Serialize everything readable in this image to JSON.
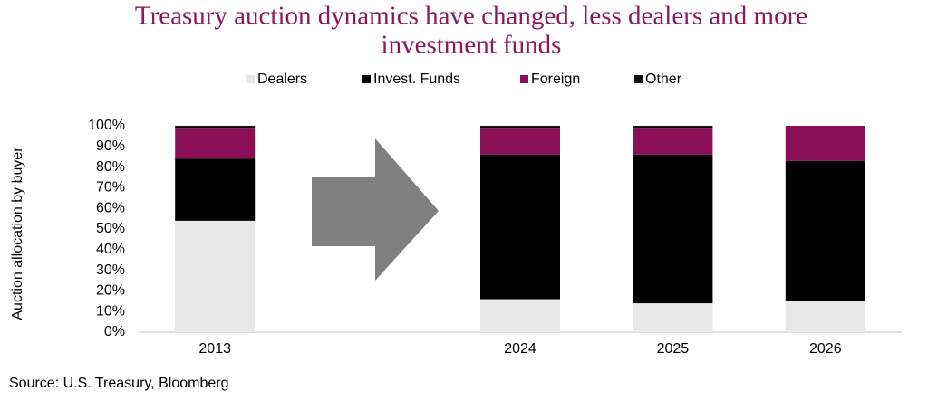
{
  "chart_data": {
    "type": "stacked_bar",
    "title": [
      "Treasury auction dynamics have changed, less dealers and more",
      "investment funds"
    ],
    "y_label": "Auction allocation by buyer",
    "source": "Source: U.S. Treasury, Bloomberg",
    "categories": [
      "2013",
      null,
      "2024",
      "2025",
      "2026"
    ],
    "series": [
      {
        "name": "Dealers",
        "color": "#e8e8e8",
        "values": [
          54,
          null,
          16,
          14,
          15
        ]
      },
      {
        "name": "Invest. Funds",
        "color": "#000000",
        "values": [
          30,
          null,
          70,
          72,
          68
        ]
      },
      {
        "name": "Foreign",
        "color": "#8b0f57",
        "values": [
          15,
          null,
          13,
          13,
          17
        ]
      },
      {
        "name": "Other",
        "color": "#111111",
        "values": [
          1,
          null,
          1,
          1,
          0
        ]
      }
    ],
    "ylim": [
      0,
      100
    ],
    "yticks": [
      {
        "value": 0,
        "label": "0%"
      },
      {
        "value": 10,
        "label": "10%"
      },
      {
        "value": 20,
        "label": "20%"
      },
      {
        "value": 30,
        "label": "30%"
      },
      {
        "value": 40,
        "label": "40%"
      },
      {
        "value": 50,
        "label": "50%"
      },
      {
        "value": 60,
        "label": "60%"
      },
      {
        "value": 70,
        "label": "70%"
      },
      {
        "value": 80,
        "label": "80%"
      },
      {
        "value": 90,
        "label": "90%"
      },
      {
        "value": 100,
        "label": "100%"
      }
    ],
    "legend": "top"
  }
}
